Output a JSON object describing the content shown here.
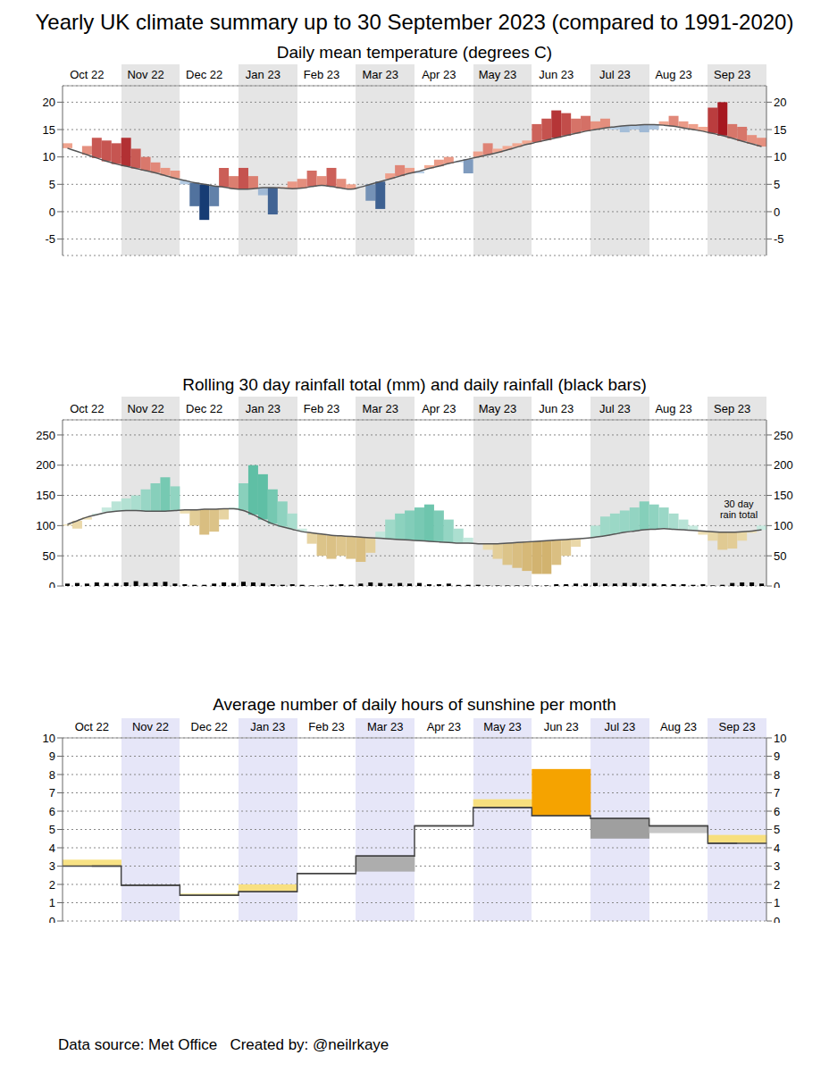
{
  "title": "Yearly UK climate summary up to 30 September 2023 (compared to 1991-2020)",
  "footer": "Data source: Met Office   Created by: @neilrkaye",
  "chart_data": [
    {
      "type": "bar",
      "title": "Daily mean temperature (degrees C)",
      "categories": [
        null,
        null,
        "Oct 22",
        null,
        null,
        null,
        null,
        null,
        "Nov 22",
        null,
        null,
        null,
        null,
        null,
        "Dec 22",
        null,
        null,
        null,
        null,
        null,
        "Jan 23",
        null,
        null,
        null,
        null,
        null,
        "Feb 23",
        null,
        null,
        null,
        null,
        null,
        "Mar 23",
        null,
        null,
        null,
        null,
        null,
        "Apr 23",
        null,
        null,
        null,
        null,
        null,
        "May 23",
        null,
        null,
        null,
        null,
        null,
        "Jun 23",
        null,
        null,
        null,
        null,
        null,
        "Jul 23",
        null,
        null,
        null,
        null,
        null,
        "Aug 23",
        null,
        null,
        null,
        null,
        null,
        "Sep 23",
        null,
        null,
        null
      ],
      "series": [
        {
          "type": "bar",
          "values": [
            12.5,
            11.0,
            12.0,
            13.5,
            13.0,
            12.5,
            13.5,
            11.5,
            10.0,
            9.0,
            8.0,
            7.5,
            5.0,
            1.0,
            -1.5,
            1.0,
            8.0,
            6.5,
            8.0,
            6.5,
            3.0,
            -0.5,
            4.5,
            5.5,
            6.0,
            7.5,
            6.5,
            8.0,
            6.0,
            5.0,
            4.5,
            2.0,
            0.5,
            7.0,
            8.5,
            8.0,
            7.0,
            8.5,
            9.5,
            10.0,
            9.0,
            7.0,
            11.0,
            12.5,
            11.5,
            12.0,
            12.5,
            13.0,
            16.0,
            17.0,
            18.5,
            18.0,
            17.0,
            17.5,
            16.5,
            17.0,
            15.0,
            14.5,
            15.0,
            14.5,
            15.0,
            16.5,
            17.5,
            16.5,
            16.0,
            15.5,
            19.0,
            20.0,
            16.0,
            15.5,
            14.0,
            13.5
          ]
        },
        {
          "type": "line",
          "color": "#555555",
          "values": [
            11.6,
            11.0,
            10.4,
            9.8,
            9.2,
            8.7,
            8.3,
            7.9,
            7.5,
            7.1,
            6.6,
            6.1,
            5.7,
            5.3,
            5.0,
            4.7,
            4.5,
            4.2,
            4.1,
            4.2,
            4.4,
            4.4,
            4.3,
            4.2,
            4.3,
            4.6,
            4.8,
            4.6,
            4.3,
            4.1,
            4.5,
            5.0,
            5.5,
            6.0,
            6.5,
            7.0,
            7.4,
            7.9,
            8.3,
            8.8,
            9.2,
            9.6,
            10.0,
            10.4,
            10.8,
            11.3,
            11.8,
            12.3,
            12.7,
            13.1,
            13.5,
            13.9,
            14.3,
            14.7,
            15.0,
            15.3,
            15.5,
            15.7,
            15.8,
            15.9,
            15.9,
            15.8,
            15.6,
            15.3,
            15.0,
            14.7,
            14.3,
            13.9,
            13.4,
            12.9,
            12.4,
            11.9
          ]
        }
      ],
      "ylim": [
        -8,
        23
      ],
      "yticks": [
        -5,
        0,
        5,
        10,
        15,
        20
      ],
      "grid": true
    },
    {
      "type": "bar",
      "title": "Rolling 30 day rainfall total (mm) and daily rainfall (black bars)",
      "annotation": "30 day rain total",
      "categories": [
        null,
        null,
        "Oct 22",
        null,
        null,
        null,
        null,
        null,
        "Nov 22",
        null,
        null,
        null,
        null,
        null,
        "Dec 22",
        null,
        null,
        null,
        null,
        null,
        "Jan 23",
        null,
        null,
        null,
        null,
        null,
        "Feb 23",
        null,
        null,
        null,
        null,
        null,
        "Mar 23",
        null,
        null,
        null,
        null,
        null,
        "Apr 23",
        null,
        null,
        null,
        null,
        null,
        "May 23",
        null,
        null,
        null,
        null,
        null,
        "Jun 23",
        null,
        null,
        null,
        null,
        null,
        "Jul 23",
        null,
        null,
        null,
        null,
        null,
        "Aug 23",
        null,
        null,
        null,
        null,
        null,
        "Sep 23",
        null,
        null,
        null
      ],
      "series": [
        {
          "type": "bar",
          "values": [
            100,
            95,
            110,
            120,
            130,
            140,
            145,
            150,
            160,
            170,
            180,
            165,
            120,
            100,
            85,
            90,
            110,
            130,
            170,
            200,
            185,
            160,
            140,
            120,
            95,
            70,
            50,
            45,
            50,
            45,
            40,
            55,
            90,
            110,
            120,
            125,
            130,
            135,
            125,
            110,
            95,
            80,
            70,
            60,
            45,
            35,
            30,
            25,
            20,
            20,
            35,
            50,
            65,
            80,
            100,
            115,
            120,
            125,
            130,
            140,
            135,
            130,
            120,
            110,
            100,
            85,
            75,
            60,
            62,
            75,
            88,
            100
          ]
        },
        {
          "type": "line",
          "color": "#555555",
          "values": [
            102,
            108,
            114,
            118,
            122,
            124,
            125,
            125,
            124,
            124,
            124,
            125,
            126,
            126,
            127,
            127,
            128,
            128,
            125,
            118,
            110,
            103,
            98,
            94,
            90,
            88,
            86,
            84,
            83,
            82,
            81,
            80,
            79,
            78,
            77,
            76,
            75,
            74,
            73,
            72,
            71,
            71,
            70,
            70,
            70,
            71,
            72,
            73,
            74,
            75,
            76,
            77,
            78,
            79,
            81,
            83,
            86,
            89,
            91,
            93,
            94,
            95,
            94,
            93,
            92,
            91,
            90,
            89,
            89,
            90,
            91,
            93
          ]
        },
        {
          "type": "bar",
          "color": "#000000",
          "values": [
            4,
            5,
            4,
            6,
            5,
            5,
            6,
            8,
            5,
            6,
            7,
            4,
            3,
            2,
            2,
            4,
            6,
            5,
            7,
            6,
            5,
            3,
            2,
            3,
            2,
            1,
            1,
            2,
            3,
            2,
            4,
            6,
            5,
            4,
            5,
            4,
            5,
            3,
            3,
            4,
            2,
            2,
            2,
            1,
            1,
            1,
            1,
            1,
            1,
            1,
            3,
            3,
            4,
            4,
            5,
            4,
            4,
            5,
            5,
            4,
            4,
            3,
            3,
            3,
            2,
            3,
            1,
            2,
            5,
            6,
            6,
            4
          ]
        }
      ],
      "ylim": [
        0,
        275
      ],
      "yticks": [
        0,
        50,
        100,
        150,
        200,
        250
      ],
      "grid": true
    },
    {
      "type": "bar",
      "title": "Average number of daily hours of sunshine per month",
      "categories": [
        "Oct 22",
        "Nov 22",
        "Dec 22",
        "Jan 23",
        "Feb 23",
        "Mar 23",
        "Apr 23",
        "May 23",
        "Jun 23",
        "Jul 23",
        "Aug 23",
        "Sep 23"
      ],
      "series": [
        {
          "type": "bar",
          "values": [
            3.35,
            1.9,
            1.5,
            2.0,
            2.6,
            2.7,
            5.2,
            6.65,
            8.3,
            4.5,
            4.8,
            4.7
          ]
        },
        {
          "type": "line",
          "color": "#444444",
          "values": [
            3.0,
            1.95,
            1.4,
            1.6,
            2.6,
            3.55,
            5.2,
            6.2,
            5.75,
            5.6,
            5.2,
            4.25
          ]
        }
      ],
      "ylim": [
        0,
        10
      ],
      "yticks": [
        0,
        1,
        2,
        3,
        4,
        5,
        6,
        7,
        8,
        9,
        10
      ],
      "grid": true
    }
  ]
}
